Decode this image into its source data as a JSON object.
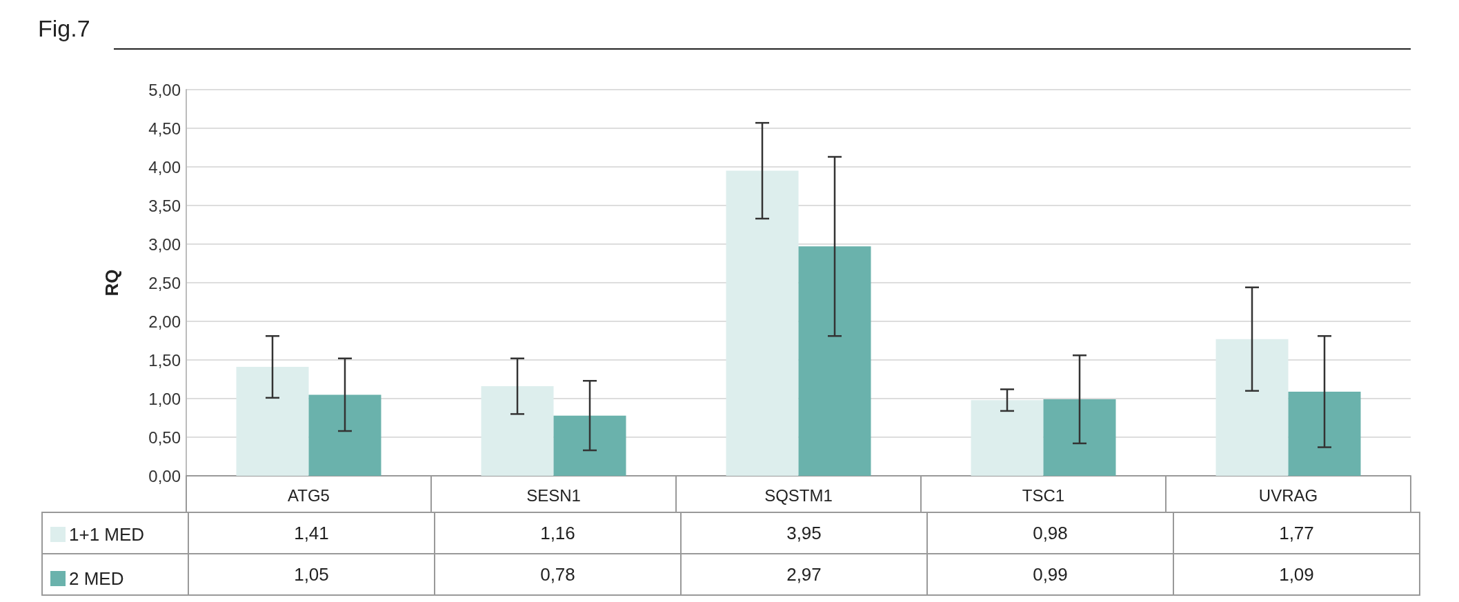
{
  "chart_data": {
    "type": "bar",
    "title": "Fig.7",
    "ylabel": "RQ",
    "categories": [
      "ATG5",
      "SESN1",
      "SQSTM1",
      "TSC1",
      "UVRAG"
    ],
    "series": [
      {
        "name": "1+1 MED",
        "color": "#ddeeed",
        "values": [
          1.41,
          1.16,
          3.95,
          0.98,
          1.77
        ],
        "errors": [
          0.4,
          0.36,
          0.62,
          0.14,
          0.67
        ],
        "value_labels": [
          "1,41",
          "1,16",
          "3,95",
          "0,98",
          "1,77"
        ]
      },
      {
        "name": "2 MED",
        "color": "#6ab2ac",
        "values": [
          1.05,
          0.78,
          2.97,
          0.99,
          1.09
        ],
        "errors": [
          0.47,
          0.45,
          1.16,
          0.57,
          0.72
        ],
        "value_labels": [
          "1,05",
          "0,78",
          "2,97",
          "0,99",
          "1,09"
        ]
      }
    ],
    "ylim": [
      0,
      5
    ],
    "yticks": [
      {
        "value": 0,
        "label": "0,00"
      },
      {
        "value": 0.5,
        "label": "0,50"
      },
      {
        "value": 1,
        "label": "1,00"
      },
      {
        "value": 1.5,
        "label": "1,50"
      },
      {
        "value": 2,
        "label": "2,00"
      },
      {
        "value": 2.5,
        "label": "2,50"
      },
      {
        "value": 3,
        "label": "3,00"
      },
      {
        "value": 3.5,
        "label": "3,50"
      },
      {
        "value": 4,
        "label": "4,00"
      },
      {
        "value": 4.5,
        "label": "4,50"
      },
      {
        "value": 5,
        "label": "5,00"
      }
    ],
    "grid": "y",
    "legend": "bottom left"
  }
}
